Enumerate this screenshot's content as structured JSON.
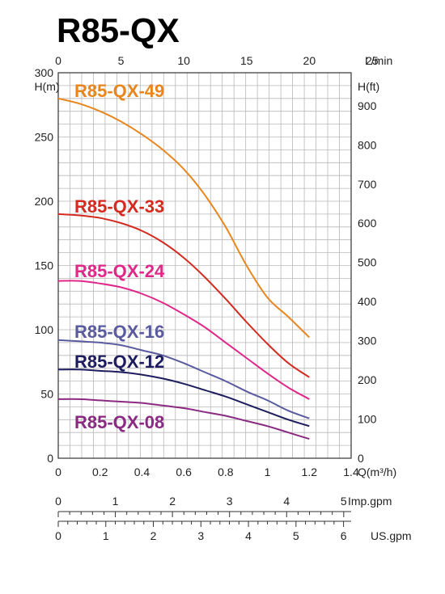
{
  "title": "R85-QX",
  "chart_data": {
    "type": "line",
    "title": "R85-QX",
    "x_axis": {
      "label": "Q(m³/h)",
      "range": [
        0,
        1.4
      ],
      "ticks": [
        "0",
        "0.2",
        "0.4",
        "0.6",
        "0.8",
        "1",
        "1.2",
        "1.4"
      ]
    },
    "y_axis_left": {
      "label": "H(m)",
      "range": [
        0,
        300
      ],
      "ticks": [
        "0",
        "50",
        "100",
        "150",
        "200",
        "250",
        "300"
      ]
    },
    "y_axis_right": {
      "label": "H(ft)",
      "range": [
        0,
        984.25
      ],
      "ticks": [
        "0",
        "100",
        "200",
        "300",
        "400",
        "500",
        "600",
        "700",
        "800",
        "900"
      ]
    },
    "top_axis": {
      "label": "L/min",
      "range": [
        0,
        23.33
      ],
      "ticks": [
        "0",
        "5",
        "10",
        "15",
        "20",
        "25"
      ]
    },
    "imp_gpm_axis": {
      "label": "Imp.gpm",
      "range": [
        0,
        5.13
      ],
      "ticks": [
        "0",
        "1",
        "2",
        "3",
        "4",
        "5"
      ]
    },
    "us_gpm_axis": {
      "label": "US.gpm",
      "range": [
        0,
        6.16
      ],
      "ticks": [
        "0",
        "1",
        "2",
        "3",
        "4",
        "5",
        "6"
      ]
    },
    "grid": true,
    "series": [
      {
        "name": "R85-QX-49",
        "color": "#E8861E",
        "x": [
          0,
          0.1,
          0.2,
          0.3,
          0.4,
          0.5,
          0.6,
          0.7,
          0.8,
          0.9,
          1.0,
          1.1,
          1.2
        ],
        "y": [
          280,
          276,
          270,
          262,
          252,
          240,
          225,
          205,
          180,
          150,
          125,
          110,
          94
        ]
      },
      {
        "name": "R85-QX-33",
        "color": "#D42A20",
        "x": [
          0,
          0.1,
          0.2,
          0.3,
          0.4,
          0.5,
          0.6,
          0.7,
          0.8,
          0.9,
          1.0,
          1.1,
          1.2
        ],
        "y": [
          190,
          189,
          187,
          183,
          177,
          168,
          156,
          141,
          124,
          106,
          89,
          74,
          63
        ]
      },
      {
        "name": "R85-QX-24",
        "color": "#E0278A",
        "x": [
          0,
          0.1,
          0.2,
          0.3,
          0.4,
          0.5,
          0.6,
          0.7,
          0.8,
          0.9,
          1.0,
          1.1,
          1.2
        ],
        "y": [
          138,
          138,
          136,
          133,
          128,
          121,
          112,
          102,
          90,
          78,
          66,
          55,
          46
        ]
      },
      {
        "name": "R85-QX-16",
        "color": "#5A5A9E",
        "x": [
          0,
          0.1,
          0.2,
          0.3,
          0.4,
          0.5,
          0.6,
          0.7,
          0.8,
          0.9,
          1.0,
          1.1,
          1.2
        ],
        "y": [
          92,
          91,
          90,
          88,
          84,
          80,
          74,
          67,
          60,
          52,
          45,
          37,
          31
        ]
      },
      {
        "name": "R85-QX-12",
        "color": "#1C1C5E",
        "x": [
          0,
          0.1,
          0.2,
          0.3,
          0.4,
          0.5,
          0.6,
          0.7,
          0.8,
          0.9,
          1.0,
          1.1,
          1.2
        ],
        "y": [
          69,
          69,
          68,
          67,
          65,
          62,
          58,
          53,
          48,
          42,
          36,
          30,
          25
        ]
      },
      {
        "name": "R85-QX-08",
        "color": "#8A2A82",
        "x": [
          0,
          0.1,
          0.2,
          0.3,
          0.4,
          0.5,
          0.6,
          0.7,
          0.8,
          0.9,
          1.0,
          1.1,
          1.2
        ],
        "y": [
          46,
          46,
          45,
          44,
          43,
          41,
          39,
          36,
          33,
          29,
          25,
          20,
          15
        ]
      }
    ]
  }
}
